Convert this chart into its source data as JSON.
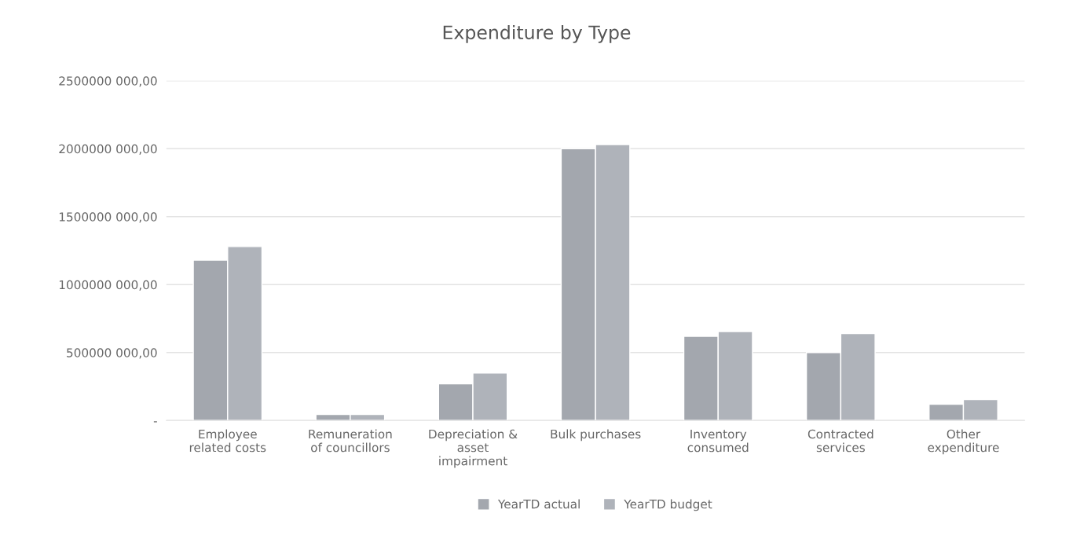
{
  "chart_data": {
    "type": "bar",
    "title": "Expenditure by Type",
    "categories": [
      "Employee\nrelated costs",
      "Remuneration\nof councillors",
      "Depreciation &\nasset\nimpairment",
      "Bulk purchases",
      "Inventory\nconsumed",
      "Contracted\nservices",
      "Other\nexpenditure"
    ],
    "series": [
      {
        "name": "YearTD actual",
        "color": "#a3a7ae",
        "values": [
          1180000000,
          45000000,
          270000000,
          2000000000,
          620000000,
          500000000,
          120000000
        ]
      },
      {
        "name": "YearTD budget",
        "color": "#afb3ba",
        "values": [
          1280000000,
          45000000,
          350000000,
          2030000000,
          655000000,
          640000000,
          155000000
        ]
      }
    ],
    "ylim": [
      0,
      2500000000
    ],
    "yticks": [
      {
        "value": 0,
        "label": "-"
      },
      {
        "value": 500000000,
        "label": "500000 000,00"
      },
      {
        "value": 1000000000,
        "label": "1000000 000,00"
      },
      {
        "value": 1500000000,
        "label": "1500000 000,00"
      },
      {
        "value": 2000000000,
        "label": "2000000 000,00"
      },
      {
        "value": 2500000000,
        "label": "2500000 000,00"
      }
    ],
    "grid": "y",
    "legend": "bottom"
  }
}
